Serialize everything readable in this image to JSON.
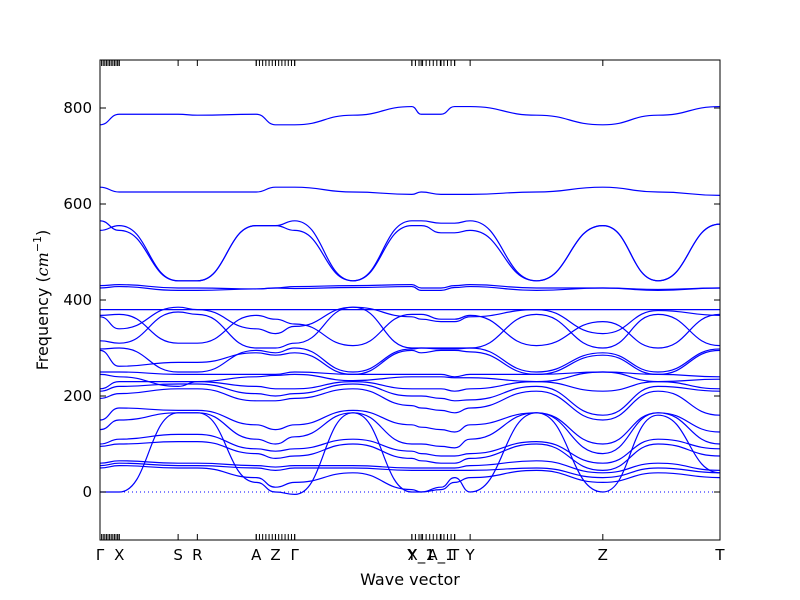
{
  "chart_data": {
    "type": "line",
    "xlabel": "Wave vector",
    "ylabel_text": "Frequency (",
    "ylabel_unit_base": "cm",
    "ylabel_unit_exp": "−1",
    "ylabel_close": ")",
    "ylim": [
      -100,
      900
    ],
    "yticks": [
      0,
      200,
      400,
      600,
      800
    ],
    "xlim": [
      0,
      1
    ],
    "xticks": [
      {
        "label": "Γ",
        "x": 0.0
      },
      {
        "label": "X",
        "x": 0.031
      },
      {
        "label": "S",
        "x": 0.126
      },
      {
        "label": "R",
        "x": 0.157
      },
      {
        "label": "A",
        "x": 0.252
      },
      {
        "label": "Z",
        "x": 0.283
      },
      {
        "label": "Γ",
        "x": 0.314
      },
      {
        "label": "Y",
        "x": 0.503
      },
      {
        "label": "X_1",
        "x": 0.518
      },
      {
        "label": "A_1",
        "x": 0.55
      },
      {
        "label": "T",
        "x": 0.572
      },
      {
        "label": "Y",
        "x": 0.597
      },
      {
        "label": "Z",
        "x": 0.811
      },
      {
        "label": "T",
        "x": 1.0
      }
    ],
    "dense_tick_groups": [
      [
        0.0,
        0.031
      ],
      [
        0.252,
        0.314
      ],
      [
        0.503,
        0.572
      ]
    ],
    "line_color": "#0000ff",
    "zero_line": {
      "y": 0,
      "style": "dotted",
      "color": "#0000ff"
    },
    "node_x": [
      0.0,
      0.031,
      0.126,
      0.157,
      0.252,
      0.283,
      0.314,
      0.408,
      0.503,
      0.518,
      0.55,
      0.572,
      0.597,
      0.704,
      0.811,
      0.9,
      1.0
    ],
    "series": [
      {
        "values": [
          765,
          787,
          787,
          785,
          787,
          765,
          765,
          785,
          803,
          787,
          787,
          803,
          803,
          785,
          765,
          785,
          803
        ]
      },
      {
        "values": [
          635,
          625,
          625,
          625,
          625,
          635,
          635,
          625,
          620,
          625,
          620,
          620,
          620,
          625,
          635,
          625,
          618
        ]
      },
      {
        "values": [
          565,
          545,
          440,
          440,
          555,
          555,
          565,
          440,
          565,
          565,
          560,
          560,
          565,
          440,
          555,
          440,
          558
        ]
      },
      {
        "values": [
          545,
          555,
          440,
          440,
          555,
          555,
          545,
          440,
          555,
          555,
          540,
          540,
          545,
          440,
          555,
          440,
          558
        ]
      },
      {
        "values": [
          430,
          432,
          425,
          425,
          423,
          425,
          428,
          430,
          432,
          425,
          425,
          430,
          432,
          425,
          425,
          422,
          425
        ]
      },
      {
        "values": [
          425,
          428,
          420,
          420,
          423,
          425,
          424,
          426,
          428,
          420,
          420,
          426,
          428,
          420,
          425,
          420,
          425
        ]
      },
      {
        "values": [
          380,
          380,
          380,
          380,
          380,
          380,
          380,
          380,
          380,
          380,
          380,
          380,
          380,
          380,
          380,
          380,
          380
        ]
      },
      {
        "values": [
          368,
          370,
          310,
          310,
          368,
          360,
          350,
          305,
          370,
          370,
          360,
          360,
          368,
          305,
          355,
          300,
          370
        ]
      },
      {
        "values": [
          365,
          340,
          385,
          380,
          340,
          330,
          345,
          385,
          365,
          360,
          355,
          355,
          365,
          380,
          330,
          378,
          368
        ]
      },
      {
        "values": [
          315,
          310,
          375,
          370,
          300,
          300,
          310,
          385,
          300,
          300,
          300,
          300,
          300,
          370,
          300,
          370,
          305
        ]
      },
      {
        "values": [
          298,
          300,
          250,
          250,
          295,
          290,
          300,
          250,
          298,
          300,
          298,
          298,
          300,
          250,
          290,
          250,
          298
        ]
      },
      {
        "values": [
          295,
          262,
          270,
          270,
          290,
          285,
          290,
          245,
          295,
          290,
          295,
          295,
          292,
          245,
          285,
          245,
          295
        ]
      },
      {
        "values": [
          250,
          250,
          245,
          245,
          245,
          245,
          250,
          245,
          245,
          245,
          245,
          240,
          245,
          245,
          250,
          245,
          240
        ]
      },
      {
        "values": [
          245,
          240,
          220,
          230,
          240,
          243,
          245,
          232,
          240,
          240,
          240,
          238,
          238,
          230,
          250,
          230,
          235
        ]
      },
      {
        "values": [
          215,
          230,
          230,
          230,
          220,
          215,
          215,
          230,
          215,
          215,
          215,
          210,
          215,
          230,
          210,
          230,
          215
        ]
      },
      {
        "values": [
          210,
          220,
          225,
          225,
          205,
          200,
          205,
          225,
          200,
          200,
          195,
          190,
          192,
          220,
          160,
          220,
          210
        ]
      },
      {
        "values": [
          195,
          205,
          215,
          215,
          190,
          190,
          195,
          215,
          180,
          175,
          170,
          165,
          175,
          210,
          150,
          210,
          160
        ]
      },
      {
        "values": [
          150,
          175,
          170,
          170,
          140,
          130,
          140,
          170,
          140,
          135,
          130,
          125,
          140,
          165,
          100,
          165,
          125
        ]
      },
      {
        "values": [
          130,
          150,
          165,
          165,
          110,
          100,
          115,
          165,
          100,
          100,
          95,
          92,
          110,
          165,
          80,
          165,
          100
        ]
      },
      {
        "values": [
          100,
          110,
          120,
          120,
          90,
          85,
          90,
          110,
          85,
          80,
          75,
          75,
          80,
          105,
          60,
          110,
          90
        ]
      },
      {
        "values": [
          95,
          100,
          105,
          105,
          80,
          70,
          75,
          100,
          70,
          65,
          60,
          60,
          70,
          100,
          45,
          100,
          75
        ]
      },
      {
        "values": [
          60,
          65,
          60,
          60,
          55,
          52,
          55,
          55,
          50,
          50,
          50,
          50,
          55,
          65,
          40,
          60,
          45
        ]
      },
      {
        "values": [
          55,
          60,
          55,
          55,
          50,
          45,
          50,
          50,
          45,
          45,
          45,
          45,
          45,
          50,
          30,
          50,
          40
        ]
      },
      {
        "values": [
          50,
          55,
          50,
          50,
          30,
          10,
          20,
          40,
          5,
          0,
          5,
          20,
          30,
          45,
          20,
          40,
          30
        ]
      },
      {
        "values": [
          0,
          0,
          165,
          165,
          20,
          0,
          -5,
          165,
          0,
          0,
          10,
          30,
          0,
          165,
          0,
          160,
          40
        ]
      }
    ]
  }
}
